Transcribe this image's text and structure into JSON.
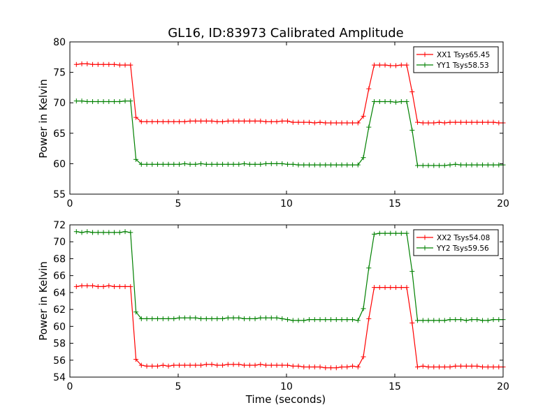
{
  "chart_data": [
    {
      "type": "line",
      "title": "GL16, ID:83973 Calibrated Amplitude",
      "xlabel": "",
      "ylabel": "Power in Kelvin",
      "xlim": [
        0,
        20
      ],
      "ylim": [
        55,
        80
      ],
      "xticks": [
        0,
        5,
        10,
        15,
        20
      ],
      "yticks": [
        55,
        60,
        65,
        70,
        75,
        80
      ],
      "grid": false,
      "legend_position": "top-right",
      "x": [
        0.3,
        0.55,
        0.8,
        1.05,
        1.3,
        1.55,
        1.8,
        2.05,
        2.3,
        2.55,
        2.8,
        3.05,
        3.3,
        3.55,
        3.8,
        4.05,
        4.3,
        4.55,
        4.8,
        5.05,
        5.3,
        5.55,
        5.8,
        6.05,
        6.3,
        6.55,
        6.8,
        7.05,
        7.3,
        7.55,
        7.8,
        8.05,
        8.3,
        8.55,
        8.8,
        9.05,
        9.3,
        9.55,
        9.8,
        10.05,
        10.3,
        10.55,
        10.8,
        11.05,
        11.3,
        11.55,
        11.8,
        12.05,
        12.3,
        12.55,
        12.8,
        13.05,
        13.3,
        13.55,
        13.8,
        14.05,
        14.3,
        14.55,
        14.8,
        15.05,
        15.3,
        15.55,
        15.8,
        16.05,
        16.3,
        16.55,
        16.8,
        17.05,
        17.3,
        17.55,
        17.8,
        18.05,
        18.3,
        18.55,
        18.8,
        19.05,
        19.3,
        19.55,
        19.8,
        20.0
      ],
      "series": [
        {
          "name": "XX1 Tsys65.45",
          "color": "#ff0000",
          "values": [
            76.3,
            76.4,
            76.4,
            76.3,
            76.3,
            76.3,
            76.3,
            76.3,
            76.2,
            76.2,
            76.2,
            67.6,
            66.9,
            66.9,
            66.9,
            66.9,
            66.9,
            66.9,
            66.9,
            66.9,
            66.9,
            67.0,
            67.0,
            67.0,
            67.0,
            67.0,
            66.9,
            66.9,
            67.0,
            67.0,
            67.0,
            67.0,
            67.0,
            67.0,
            67.0,
            66.9,
            66.9,
            66.9,
            67.0,
            67.0,
            66.8,
            66.8,
            66.8,
            66.8,
            66.7,
            66.8,
            66.7,
            66.7,
            66.7,
            66.7,
            66.7,
            66.7,
            66.7,
            67.8,
            72.3,
            76.2,
            76.2,
            76.2,
            76.1,
            76.1,
            76.2,
            76.2,
            71.8,
            66.8,
            66.7,
            66.7,
            66.7,
            66.8,
            66.7,
            66.8,
            66.8,
            66.8,
            66.8,
            66.8,
            66.8,
            66.8,
            66.8,
            66.8,
            66.7,
            66.7
          ]
        },
        {
          "name": "YY1 Tsys58.53",
          "color": "#008000",
          "values": [
            70.3,
            70.3,
            70.2,
            70.2,
            70.2,
            70.2,
            70.2,
            70.2,
            70.2,
            70.3,
            70.3,
            60.7,
            59.9,
            59.9,
            59.9,
            59.9,
            59.9,
            59.9,
            59.9,
            59.9,
            60.0,
            59.9,
            59.9,
            60.0,
            59.9,
            59.9,
            59.9,
            59.9,
            59.9,
            59.9,
            59.9,
            60.0,
            59.9,
            59.9,
            59.9,
            60.0,
            60.0,
            60.0,
            60.0,
            59.9,
            59.9,
            59.8,
            59.8,
            59.8,
            59.8,
            59.8,
            59.8,
            59.8,
            59.8,
            59.8,
            59.8,
            59.8,
            59.8,
            61.0,
            66.0,
            70.2,
            70.2,
            70.2,
            70.2,
            70.1,
            70.2,
            70.2,
            65.5,
            59.7,
            59.7,
            59.7,
            59.7,
            59.7,
            59.7,
            59.8,
            59.9,
            59.8,
            59.8,
            59.8,
            59.8,
            59.8,
            59.8,
            59.8,
            59.8,
            59.8
          ]
        }
      ]
    },
    {
      "type": "line",
      "title": "",
      "xlabel": "Time (seconds)",
      "ylabel": "Power in Kelvin",
      "xlim": [
        0,
        20
      ],
      "ylim": [
        54,
        72
      ],
      "xticks": [
        0,
        5,
        10,
        15,
        20
      ],
      "yticks": [
        54,
        56,
        58,
        60,
        62,
        64,
        66,
        68,
        70,
        72
      ],
      "grid": false,
      "legend_position": "top-right",
      "x": [
        0.3,
        0.55,
        0.8,
        1.05,
        1.3,
        1.55,
        1.8,
        2.05,
        2.3,
        2.55,
        2.8,
        3.05,
        3.3,
        3.55,
        3.8,
        4.05,
        4.3,
        4.55,
        4.8,
        5.05,
        5.3,
        5.55,
        5.8,
        6.05,
        6.3,
        6.55,
        6.8,
        7.05,
        7.3,
        7.55,
        7.8,
        8.05,
        8.3,
        8.55,
        8.8,
        9.05,
        9.3,
        9.55,
        9.8,
        10.05,
        10.3,
        10.55,
        10.8,
        11.05,
        11.3,
        11.55,
        11.8,
        12.05,
        12.3,
        12.55,
        12.8,
        13.05,
        13.3,
        13.55,
        13.8,
        14.05,
        14.3,
        14.55,
        14.8,
        15.05,
        15.3,
        15.55,
        15.8,
        16.05,
        16.3,
        16.55,
        16.8,
        17.05,
        17.3,
        17.55,
        17.8,
        18.05,
        18.3,
        18.55,
        18.8,
        19.05,
        19.3,
        19.55,
        19.8,
        20.0
      ],
      "series": [
        {
          "name": "XX2 Tsys54.08",
          "color": "#ff0000",
          "values": [
            64.7,
            64.8,
            64.8,
            64.8,
            64.7,
            64.7,
            64.8,
            64.7,
            64.7,
            64.7,
            64.7,
            56.1,
            55.4,
            55.3,
            55.3,
            55.3,
            55.4,
            55.3,
            55.4,
            55.4,
            55.4,
            55.4,
            55.4,
            55.4,
            55.5,
            55.5,
            55.4,
            55.4,
            55.5,
            55.5,
            55.5,
            55.4,
            55.4,
            55.4,
            55.5,
            55.4,
            55.4,
            55.4,
            55.4,
            55.4,
            55.3,
            55.3,
            55.2,
            55.2,
            55.2,
            55.2,
            55.1,
            55.1,
            55.1,
            55.2,
            55.2,
            55.3,
            55.2,
            56.4,
            60.9,
            64.6,
            64.6,
            64.6,
            64.6,
            64.6,
            64.6,
            64.6,
            60.4,
            55.2,
            55.3,
            55.2,
            55.2,
            55.2,
            55.2,
            55.2,
            55.3,
            55.3,
            55.3,
            55.3,
            55.3,
            55.2,
            55.2,
            55.2,
            55.2,
            55.2
          ]
        },
        {
          "name": "YY2 Tsys59.56",
          "color": "#008000",
          "values": [
            71.2,
            71.1,
            71.2,
            71.1,
            71.1,
            71.1,
            71.1,
            71.1,
            71.1,
            71.2,
            71.1,
            61.7,
            60.9,
            60.9,
            60.9,
            60.9,
            60.9,
            60.9,
            60.9,
            61.0,
            61.0,
            61.0,
            61.0,
            60.9,
            60.9,
            60.9,
            60.9,
            60.9,
            61.0,
            61.0,
            61.0,
            60.9,
            60.9,
            60.9,
            61.0,
            61.0,
            61.0,
            61.0,
            60.9,
            60.8,
            60.7,
            60.7,
            60.7,
            60.8,
            60.8,
            60.8,
            60.8,
            60.8,
            60.8,
            60.8,
            60.8,
            60.8,
            60.7,
            62.1,
            66.9,
            70.9,
            71.0,
            71.0,
            71.0,
            71.0,
            71.0,
            71.0,
            66.5,
            60.7,
            60.7,
            60.7,
            60.7,
            60.7,
            60.7,
            60.8,
            60.8,
            60.8,
            60.7,
            60.8,
            60.8,
            60.7,
            60.7,
            60.8,
            60.8,
            60.8
          ]
        }
      ]
    }
  ]
}
